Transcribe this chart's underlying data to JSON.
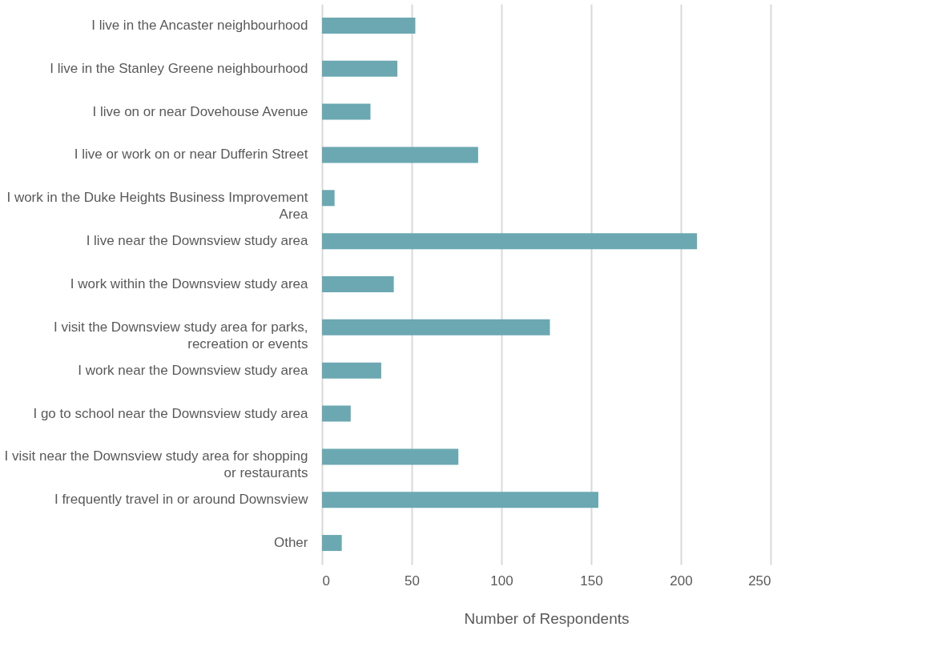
{
  "chart_data": {
    "type": "bar",
    "orientation": "horizontal",
    "xlabel": "Number of Respondents",
    "categories": [
      "I live in the Ancaster neighbourhood",
      "I live in the Stanley Greene neighbourhood",
      "I live on or near Dovehouse Avenue",
      "I live or work on or near Dufferin Street",
      "I work in the Duke Heights Business Improvement Area",
      "I live near the Downsview study area",
      "I work within the Downsview study area",
      "I visit the Downsview study area for parks, recreation or events",
      "I work near the Downsview study area",
      "I go to school near the Downsview study area",
      "I visit near the Downsview study area for shopping or restaurants",
      "I frequently travel in or around Downsview",
      "Other"
    ],
    "values": [
      52,
      42,
      27,
      87,
      7,
      209,
      40,
      127,
      33,
      16,
      76,
      154,
      11
    ],
    "color": "#6ba8b2",
    "xlim": [
      0,
      250
    ],
    "xticks": [
      0,
      50,
      100,
      150,
      200,
      250
    ],
    "grid": "x"
  }
}
